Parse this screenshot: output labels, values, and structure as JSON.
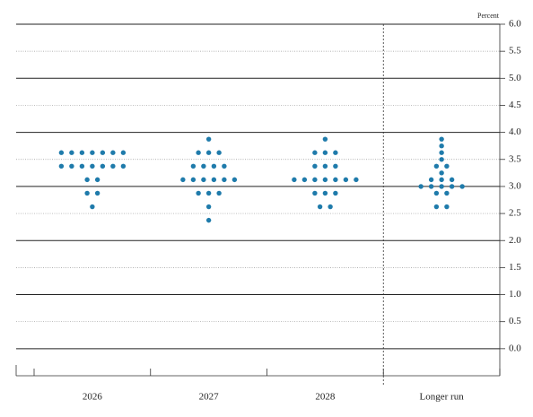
{
  "chart_data": {
    "type": "dot",
    "y_label": "Percent",
    "categories": [
      "2026",
      "2027",
      "2028",
      "Longer run"
    ],
    "values": [
      [
        3.625,
        3.625,
        3.625,
        3.625,
        3.625,
        3.625,
        3.625,
        3.375,
        3.375,
        3.375,
        3.375,
        3.375,
        3.375,
        3.375,
        3.125,
        3.125,
        2.875,
        2.875,
        2.625
      ],
      [
        3.875,
        3.625,
        3.625,
        3.625,
        3.375,
        3.375,
        3.375,
        3.375,
        3.125,
        3.125,
        3.125,
        3.125,
        3.125,
        3.125,
        2.875,
        2.875,
        2.875,
        2.625,
        2.375
      ],
      [
        3.875,
        3.625,
        3.625,
        3.625,
        3.375,
        3.375,
        3.375,
        3.125,
        3.125,
        3.125,
        3.125,
        3.125,
        3.125,
        3.125,
        2.875,
        2.875,
        2.875,
        2.625,
        2.625
      ],
      [
        3.875,
        3.75,
        3.625,
        3.5,
        3.375,
        3.375,
        3.25,
        3.125,
        3.125,
        3.125,
        3,
        3,
        3,
        3,
        3,
        2.875,
        2.875,
        2.625,
        2.625
      ]
    ],
    "color": "#1f7bab",
    "ylim": [
      -0.5,
      6.0
    ],
    "yticks": [
      {
        "value": 0,
        "label": "0.0"
      },
      0.5,
      {
        "value": 1,
        "label": "1.0"
      },
      1.5,
      {
        "value": 2,
        "label": "2.0"
      },
      2.5,
      {
        "value": 3,
        "label": "3.0"
      },
      3.5,
      {
        "value": 4,
        "label": "4.0"
      },
      4.5,
      {
        "value": 5,
        "label": "5.0"
      },
      5.5,
      {
        "value": 6,
        "label": "6.0"
      }
    ],
    "grid": true
  }
}
